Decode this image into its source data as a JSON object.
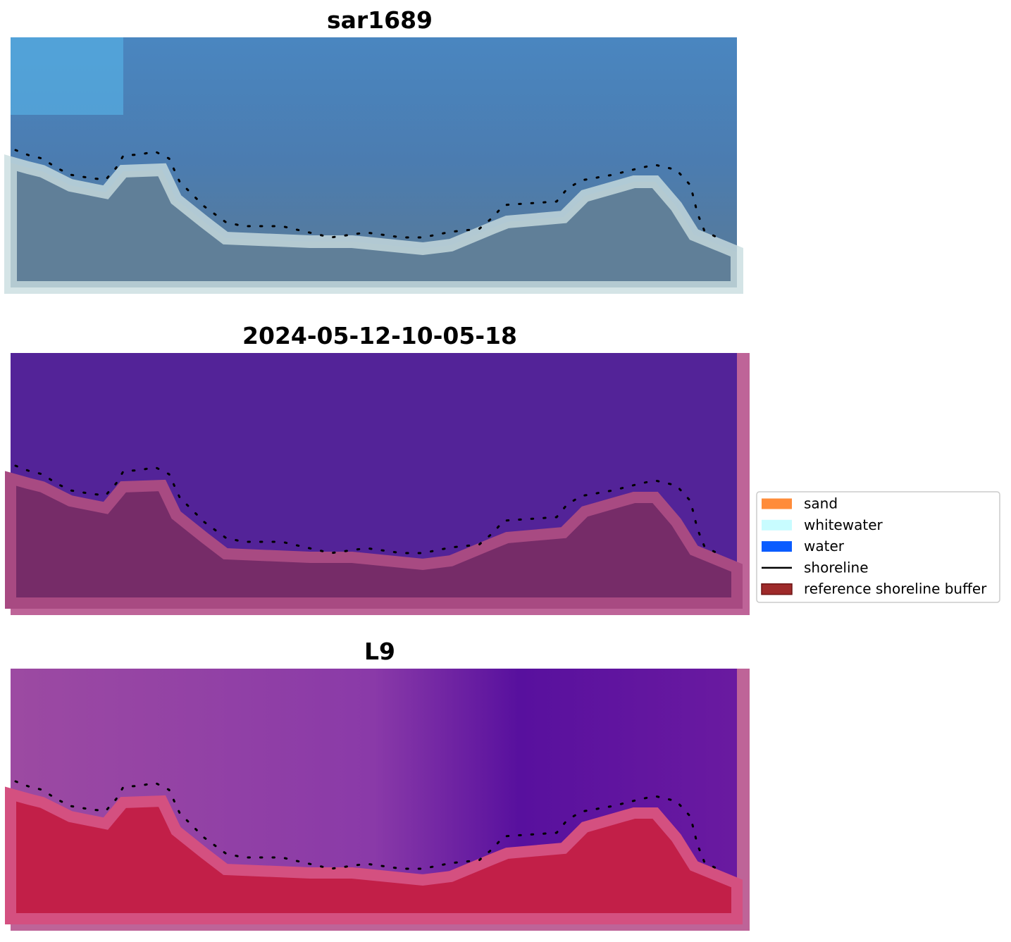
{
  "panels": [
    {
      "title": "sar1689"
    },
    {
      "title": "2024-05-12-10-05-18"
    },
    {
      "title": "L9"
    }
  ],
  "legend": {
    "items": [
      {
        "label": "sand",
        "color": "#ff8c3a",
        "marker": "patch"
      },
      {
        "label": "whitewater",
        "color": "#c8fcff",
        "marker": "patch"
      },
      {
        "label": "water",
        "color": "#0a5cff",
        "marker": "patch"
      },
      {
        "label": "shoreline",
        "color": "#000000",
        "marker": "line"
      },
      {
        "label": "reference shoreline buffer",
        "color": "#9e2a2a",
        "marker": "patch"
      }
    ]
  }
}
